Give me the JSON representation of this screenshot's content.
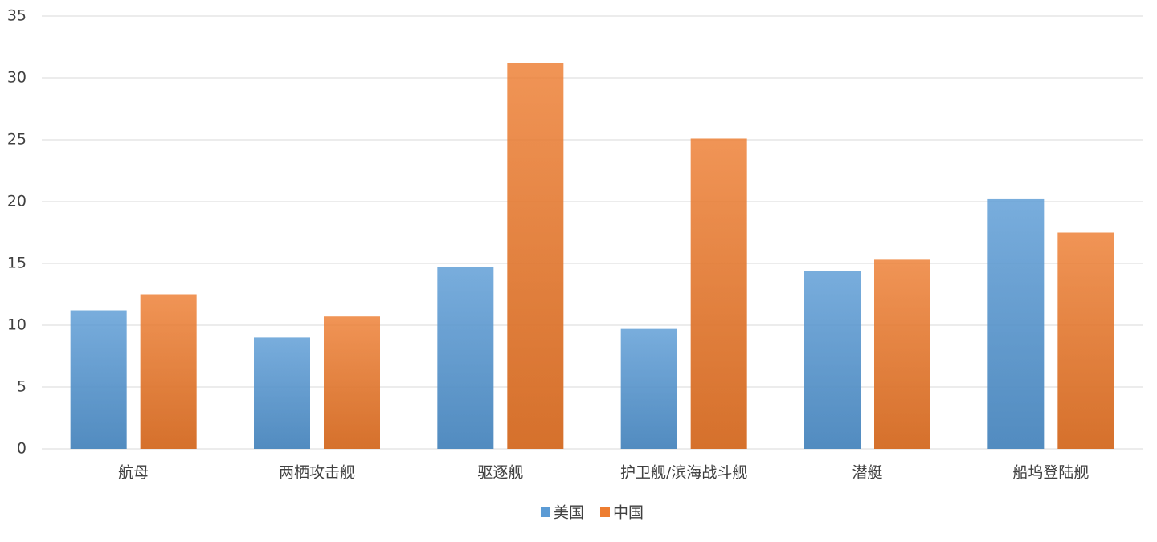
{
  "chart_data": {
    "type": "bar",
    "categories": [
      "航母",
      "两栖攻击舰",
      "驱逐舰",
      "护卫舰/滨海战斗舰",
      "潜艇",
      "船坞登陆舰"
    ],
    "series": [
      {
        "name": "美国",
        "color": "#5b9bd5",
        "values": [
          11.2,
          9.0,
          14.7,
          9.7,
          14.4,
          20.2
        ]
      },
      {
        "name": "中国",
        "color": "#ed7d31",
        "values": [
          12.5,
          10.7,
          31.2,
          25.1,
          15.3,
          17.5
        ]
      }
    ],
    "ylim": [
      0,
      35
    ],
    "yticks": [
      0,
      5,
      10,
      15,
      20,
      25,
      30,
      35
    ],
    "grid": true,
    "legend": "bottom"
  }
}
